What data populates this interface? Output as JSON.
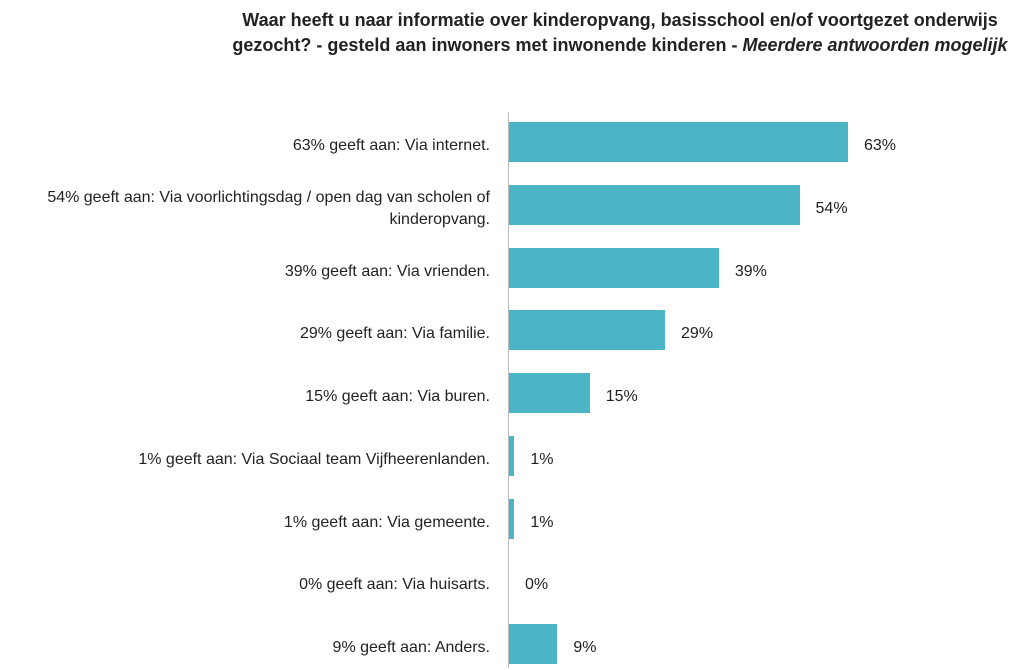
{
  "chart_data": {
    "type": "bar",
    "orientation": "horizontal",
    "title": "Waar heeft u naar informatie over kinderopvang, basisschool en/of voortgezet onderwijs gezocht? - gesteld aan inwoners met inwonende kinderen - ",
    "subtitle": "Meerdere antwoorden mogelijk",
    "categories": [
      "63% geeft aan: Via internet.",
      "54% geeft aan: Via voorlichtingsdag / open dag van scholen of kinderopvang.",
      "39% geeft aan: Via vrienden.",
      "29% geeft aan: Via familie.",
      "15% geeft aan: Via buren.",
      "1% geeft aan: Via Sociaal team Vijfheerenlanden.",
      "1% geeft aan: Via gemeente.",
      "0% geeft aan: Via huisarts.",
      "9% geeft aan: Anders."
    ],
    "values": [
      63,
      54,
      39,
      29,
      15,
      1,
      1,
      0,
      9
    ],
    "value_labels": [
      "63%",
      "54%",
      "39%",
      "29%",
      "15%",
      "1%",
      "1%",
      "0%",
      "9%"
    ],
    "color": "#4bb5c5",
    "xlim": [
      0,
      100
    ]
  }
}
